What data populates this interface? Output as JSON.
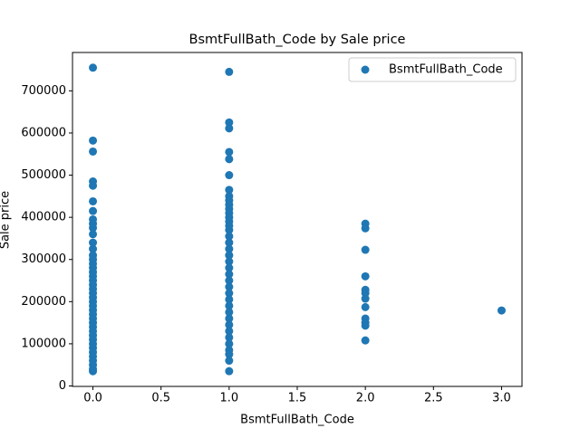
{
  "chart_data": {
    "type": "scatter",
    "title": "BsmtFullBath_Code by Sale price",
    "xlabel": "BsmtFullBath_Code",
    "ylabel": "Sale price",
    "xlim": [
      -0.15,
      3.15
    ],
    "xticks": [
      {
        "value": 0,
        "label": "0.0"
      },
      0.5,
      {
        "value": 1,
        "label": "1.0"
      },
      1.5,
      {
        "value": 2,
        "label": "2.0"
      },
      2.5,
      {
        "value": 3,
        "label": "3.0"
      }
    ],
    "ylim": [
      -1100,
      791000
    ],
    "yticks": [
      0,
      100000,
      200000,
      300000,
      400000,
      500000,
      600000,
      700000
    ],
    "legend": "upper right",
    "series": [
      {
        "name": "BsmtFullBath_Code",
        "color": "#1f77b4",
        "x": [
          0,
          0,
          0,
          0,
          0,
          0,
          0,
          0,
          0,
          0,
          0,
          0,
          0,
          0,
          0,
          0,
          0,
          0,
          0,
          0,
          0,
          0,
          0,
          0,
          0,
          0,
          0,
          0,
          0,
          0,
          0,
          0,
          0,
          0,
          0,
          0,
          0,
          0,
          0,
          0,
          0,
          0,
          1,
          1,
          1,
          1,
          1,
          1,
          1,
          1,
          1,
          1,
          1,
          1,
          1,
          1,
          1,
          1,
          1,
          1,
          1,
          1,
          1,
          1,
          1,
          1,
          1,
          1,
          1,
          1,
          1,
          1,
          1,
          1,
          1,
          1,
          1,
          1,
          1,
          1,
          2,
          2,
          2,
          2,
          2,
          2,
          2,
          2,
          2,
          2,
          2,
          2,
          3
        ],
        "values": [
          755000,
          582000,
          556000,
          485000,
          475000,
          438000,
          415000,
          395000,
          385000,
          375000,
          360000,
          340000,
          325000,
          310000,
          300000,
          290000,
          280000,
          270000,
          260000,
          250000,
          240000,
          230000,
          220000,
          210000,
          200000,
          190000,
          180000,
          170000,
          160000,
          150000,
          140000,
          130000,
          120000,
          110000,
          100000,
          90000,
          80000,
          70000,
          60000,
          50000,
          40000,
          34900,
          745000,
          625000,
          611000,
          555000,
          538000,
          500000,
          465000,
          450000,
          440000,
          430000,
          420000,
          410000,
          400000,
          390000,
          380000,
          370000,
          355000,
          340000,
          325000,
          310000,
          295000,
          280000,
          265000,
          250000,
          235000,
          220000,
          205000,
          190000,
          175000,
          160000,
          145000,
          130000,
          115000,
          100000,
          85000,
          75000,
          60000,
          35000,
          385000,
          374000,
          323000,
          260000,
          228000,
          220000,
          207000,
          187000,
          160000,
          150000,
          143000,
          108000,
          179000
        ]
      }
    ]
  }
}
